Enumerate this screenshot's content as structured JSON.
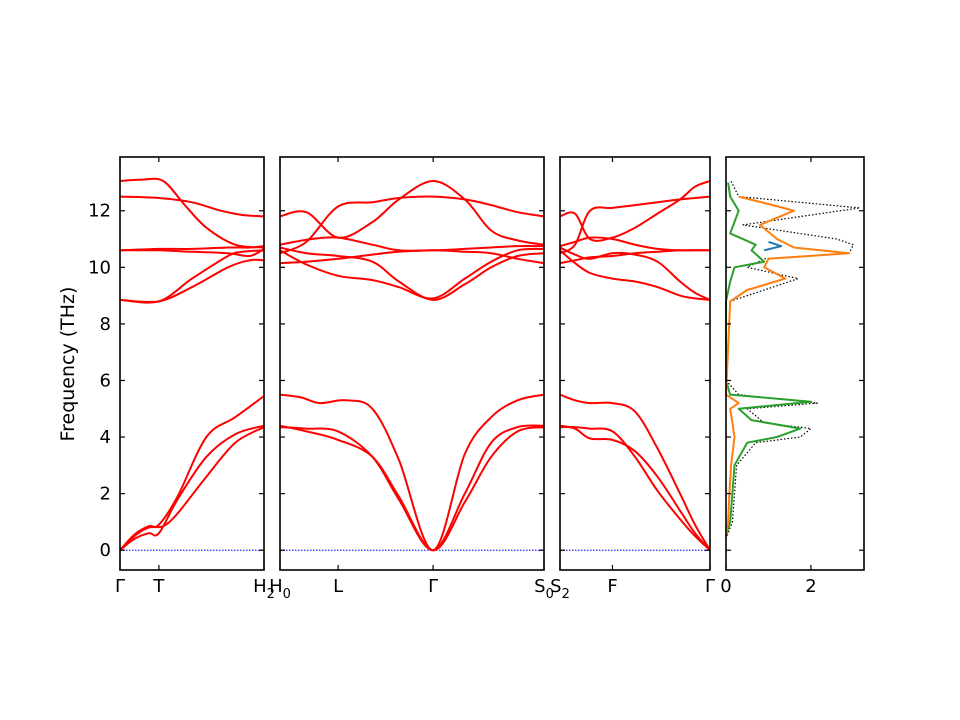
{
  "chart_data": {
    "type": "line",
    "ylabel": "Frequency (THz)",
    "ylim": [
      -0.7,
      13.9
    ],
    "yticks": [
      "0",
      "2",
      "4",
      "6",
      "8",
      "10",
      "12"
    ],
    "band_color": "#ff0000",
    "zero_line_color": "#0000ff",
    "panels": [
      {
        "name": "Γ–T–H2",
        "xlim": [
          0,
          1
        ],
        "ticks": [
          {
            "x": 0,
            "label": "Γ"
          },
          {
            "x": 0.27,
            "label": "T"
          },
          {
            "x": 1,
            "label": "H2"
          }
        ],
        "bands": [
          {
            "x": [
              0,
              0.1,
              0.2,
              0.27,
              0.4,
              0.6,
              0.8,
              1
            ],
            "y": [
              0,
              0.4,
              0.6,
              0.6,
              1.8,
              3.3,
              4.1,
              4.4
            ]
          },
          {
            "x": [
              0,
              0.1,
              0.2,
              0.3,
              0.4,
              0.6,
              0.8,
              1
            ],
            "y": [
              0,
              0.5,
              0.8,
              0.85,
              1.3,
              2.6,
              3.8,
              4.35
            ]
          },
          {
            "x": [
              0,
              0.1,
              0.2,
              0.27,
              0.4,
              0.6,
              0.8,
              1
            ],
            "y": [
              0,
              0.55,
              0.85,
              0.9,
              1.9,
              4.0,
              4.7,
              5.45
            ]
          },
          {
            "x": [
              0,
              0.27,
              0.5,
              0.75,
              0.9,
              1
            ],
            "y": [
              8.85,
              8.8,
              9.3,
              10.0,
              10.25,
              10.25
            ]
          },
          {
            "x": [
              0,
              0.27,
              0.5,
              0.75,
              0.85,
              1
            ],
            "y": [
              8.85,
              8.8,
              9.6,
              10.4,
              10.55,
              10.6
            ]
          },
          {
            "x": [
              0,
              0.27,
              0.5,
              0.75,
              0.9,
              1
            ],
            "y": [
              10.6,
              10.6,
              10.55,
              10.5,
              10.4,
              10.65
            ]
          },
          {
            "x": [
              0,
              0.27,
              0.5,
              0.75,
              0.9,
              1
            ],
            "y": [
              10.6,
              10.65,
              10.65,
              10.7,
              10.7,
              10.75
            ]
          },
          {
            "x": [
              0,
              0.27,
              0.5,
              0.7,
              0.85,
              1
            ],
            "y": [
              12.5,
              12.45,
              12.3,
              12.0,
              11.85,
              11.8
            ]
          },
          {
            "x": [
              0,
              0.15,
              0.3,
              0.45,
              0.6,
              0.8,
              1
            ],
            "y": [
              13.05,
              13.1,
              13.05,
              12.2,
              11.4,
              10.8,
              10.7
            ]
          }
        ]
      },
      {
        "name": "H0–L–Γ–S0",
        "xlim": [
          0,
          1
        ],
        "ticks": [
          {
            "x": 0,
            "label": "H0"
          },
          {
            "x": 0.22,
            "label": "L"
          },
          {
            "x": 0.58,
            "label": "Γ"
          },
          {
            "x": 1,
            "label": "S0"
          }
        ],
        "bands": [
          {
            "x": [
              0,
              0.1,
              0.22,
              0.35,
              0.45,
              0.58,
              0.7,
              0.8,
              0.9,
              1
            ],
            "y": [
              4.35,
              4.3,
              4.2,
              3.3,
              1.8,
              0,
              2.0,
              3.8,
              4.35,
              4.4
            ]
          },
          {
            "x": [
              0,
              0.1,
              0.22,
              0.35,
              0.45,
              0.58,
              0.7,
              0.8,
              0.9,
              1
            ],
            "y": [
              4.4,
              4.2,
              3.9,
              3.3,
              1.9,
              0,
              1.7,
              3.3,
              4.2,
              4.35
            ]
          },
          {
            "x": [
              0,
              0.08,
              0.15,
              0.25,
              0.35,
              0.45,
              0.58,
              0.7,
              0.8,
              0.9,
              1
            ],
            "y": [
              5.5,
              5.4,
              5.2,
              5.3,
              5.0,
              3.2,
              0,
              3.4,
              4.7,
              5.3,
              5.5
            ]
          },
          {
            "x": [
              0,
              0.1,
              0.22,
              0.35,
              0.45,
              0.58,
              0.7,
              0.8,
              0.9,
              1
            ],
            "y": [
              10.6,
              10.1,
              9.7,
              9.55,
              9.3,
              8.9,
              9.6,
              10.2,
              10.6,
              10.65
            ]
          },
          {
            "x": [
              0,
              0.1,
              0.22,
              0.35,
              0.45,
              0.58,
              0.7,
              0.8,
              0.9,
              1
            ],
            "y": [
              10.7,
              10.5,
              10.4,
              10.2,
              9.5,
              8.85,
              9.4,
              10.0,
              10.4,
              10.5
            ]
          },
          {
            "x": [
              0,
              0.1,
              0.22,
              0.35,
              0.45,
              0.58,
              0.7,
              0.8,
              0.9,
              1
            ],
            "y": [
              10.15,
              10.2,
              10.3,
              10.45,
              10.55,
              10.6,
              10.55,
              10.5,
              10.3,
              10.15
            ]
          },
          {
            "x": [
              0,
              0.12,
              0.22,
              0.35,
              0.45,
              0.58,
              0.7,
              0.8,
              0.9,
              1
            ],
            "y": [
              10.8,
              11.0,
              11.05,
              10.8,
              10.6,
              10.6,
              10.65,
              10.7,
              10.75,
              10.75
            ]
          },
          {
            "x": [
              0,
              0.1,
              0.22,
              0.35,
              0.45,
              0.58,
              0.7,
              0.8,
              0.9,
              1
            ],
            "y": [
              11.8,
              11.95,
              11.05,
              11.6,
              12.4,
              13.05,
              12.4,
              11.3,
              10.95,
              10.8
            ]
          },
          {
            "x": [
              0,
              0.1,
              0.22,
              0.35,
              0.45,
              0.58,
              0.7,
              0.8,
              0.9,
              1
            ],
            "y": [
              10.5,
              10.9,
              12.15,
              12.3,
              12.45,
              12.5,
              12.4,
              12.2,
              11.95,
              11.8
            ]
          }
        ]
      },
      {
        "name": "S2–F–Γ",
        "xlim": [
          0,
          1
        ],
        "ticks": [
          {
            "x": 0,
            "label": "S2"
          },
          {
            "x": 0.35,
            "label": "F"
          },
          {
            "x": 1,
            "label": "Γ"
          }
        ],
        "bands": [
          {
            "x": [
              0,
              0.1,
              0.2,
              0.35,
              0.5,
              0.65,
              0.8,
              0.9,
              1
            ],
            "y": [
              4.4,
              4.3,
              3.95,
              3.9,
              3.5,
              2.6,
              1.4,
              0.6,
              0
            ]
          },
          {
            "x": [
              0,
              0.1,
              0.2,
              0.35,
              0.5,
              0.65,
              0.8,
              0.9,
              1
            ],
            "y": [
              4.35,
              4.35,
              4.3,
              4.2,
              3.3,
              2.1,
              1.1,
              0.5,
              0
            ]
          },
          {
            "x": [
              0,
              0.1,
              0.2,
              0.35,
              0.5,
              0.65,
              0.8,
              0.9,
              1
            ],
            "y": [
              5.5,
              5.3,
              5.2,
              5.2,
              4.9,
              3.6,
              2.0,
              0.9,
              0
            ]
          },
          {
            "x": [
              0,
              0.1,
              0.2,
              0.35,
              0.5,
              0.65,
              0.8,
              0.9,
              1
            ],
            "y": [
              10.6,
              10.15,
              9.8,
              9.6,
              9.5,
              9.3,
              9.0,
              8.9,
              8.85
            ]
          },
          {
            "x": [
              0,
              0.1,
              0.2,
              0.35,
              0.5,
              0.65,
              0.8,
              0.9,
              1
            ],
            "y": [
              10.7,
              10.45,
              10.3,
              10.5,
              10.45,
              10.2,
              9.5,
              9.1,
              8.85
            ]
          },
          {
            "x": [
              0,
              0.1,
              0.2,
              0.35,
              0.5,
              0.65,
              0.8,
              0.9,
              1
            ],
            "y": [
              10.15,
              10.25,
              10.35,
              10.4,
              10.5,
              10.55,
              10.6,
              10.6,
              10.6
            ]
          },
          {
            "x": [
              0,
              0.1,
              0.2,
              0.35,
              0.5,
              0.65,
              0.8,
              0.9,
              1
            ],
            "y": [
              10.75,
              10.9,
              11.05,
              11.0,
              10.8,
              10.65,
              10.6,
              10.6,
              10.6
            ]
          },
          {
            "x": [
              0,
              0.1,
              0.2,
              0.35,
              0.5,
              0.65,
              0.8,
              0.9,
              1
            ],
            "y": [
              11.8,
              11.9,
              11.0,
              11.05,
              11.4,
              11.9,
              12.4,
              12.85,
              13.05
            ]
          },
          {
            "x": [
              0,
              0.1,
              0.2,
              0.35,
              0.5,
              0.65,
              0.8,
              0.9,
              1
            ],
            "y": [
              10.5,
              10.8,
              12.0,
              12.1,
              12.2,
              12.3,
              12.4,
              12.45,
              12.5
            ]
          }
        ]
      }
    ],
    "dos": {
      "xlim": [
        0,
        3.25
      ],
      "xticks": [
        "0",
        "2"
      ],
      "series": [
        {
          "color": "#000000",
          "style": "dotted",
          "y": [
            0.4,
            1,
            2,
            3,
            3.8,
            4.0,
            4.3,
            4.5,
            5.0,
            5.2,
            5.5,
            6,
            8.8,
            9.2,
            9.6,
            10.0,
            10.3,
            10.5,
            10.8,
            11.0,
            11.5,
            12.1,
            12.5,
            13.1
          ],
          "x": [
            0.0,
            0.15,
            0.2,
            0.25,
            0.7,
            1.75,
            2.0,
            0.9,
            0.5,
            2.15,
            0.3,
            0.0,
            0.1,
            0.9,
            1.7,
            0.5,
            0.9,
            2.9,
            3.0,
            2.6,
            0.4,
            3.15,
            0.3,
            0.1
          ]
        },
        {
          "color": "#2ca02c",
          "style": "solid",
          "y": [
            0.5,
            1,
            2,
            3,
            3.8,
            4.0,
            4.3,
            4.6,
            5.0,
            5.25,
            5.5,
            6,
            8.8,
            9.5,
            10.0,
            10.2,
            10.6,
            10.8,
            11.2,
            12.0,
            12.5,
            13.0
          ],
          "x": [
            0.0,
            0.1,
            0.15,
            0.2,
            0.5,
            1.2,
            1.75,
            0.6,
            0.3,
            2.0,
            0.1,
            0.0,
            0.0,
            0.1,
            0.2,
            0.9,
            0.6,
            0.7,
            0.1,
            0.3,
            0.1,
            0.05
          ]
        },
        {
          "color": "#ff7f0e",
          "style": "solid",
          "y": [
            0.5,
            1,
            2,
            3,
            4,
            4.5,
            5.0,
            5.2,
            5.5,
            8.8,
            9.2,
            9.6,
            10.0,
            10.3,
            10.5,
            10.7,
            11.0,
            11.5,
            12.0,
            12.2,
            12.5
          ],
          "x": [
            0.0,
            0.05,
            0.08,
            0.12,
            0.2,
            0.15,
            0.1,
            0.3,
            0.0,
            0.1,
            0.5,
            1.4,
            0.9,
            1.0,
            2.9,
            1.6,
            1.2,
            0.8,
            1.6,
            1.1,
            0.3
          ]
        },
        {
          "color": "#1f77b4",
          "style": "solid",
          "y": [
            10.6,
            10.75,
            10.9
          ],
          "x": [
            0.9,
            1.3,
            1.0
          ]
        }
      ]
    }
  }
}
